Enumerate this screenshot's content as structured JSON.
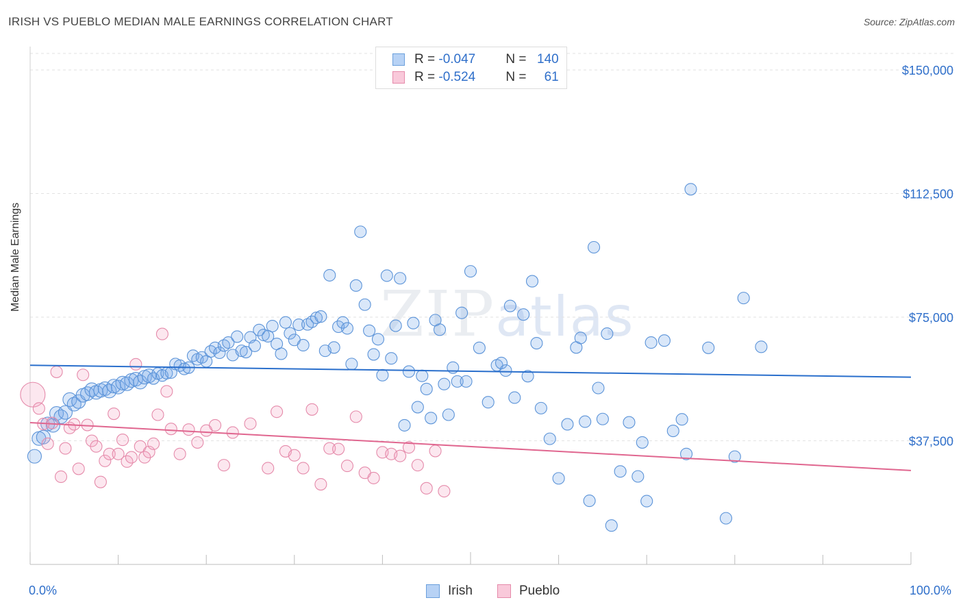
{
  "header": {
    "title": "IRISH VS PUEBLO MEDIAN MALE EARNINGS CORRELATION CHART",
    "source": "Source: ZipAtlas.com"
  },
  "watermark": {
    "zip": "ZIP",
    "atlas": "atlas"
  },
  "legend": {
    "rows": [
      {
        "r_label": "R = ",
        "r_value": "-0.047",
        "n_label": "N = ",
        "n_value": "140",
        "color": "#a9c8f0",
        "stroke": "#6a9fdc"
      },
      {
        "r_label": "R = ",
        "r_value": "-0.524",
        "n_label": "N = ",
        "n_value": "61",
        "color": "#f7bfd2",
        "stroke": "#e58aaa"
      }
    ]
  },
  "bottom_legend": {
    "irish": "Irish",
    "pueblo": "Pueblo"
  },
  "colors": {
    "irish_fill": "rgba(120,170,235,0.28)",
    "irish_stroke": "#5b93d8",
    "irish_line": "#2a6fcc",
    "pueblo_fill": "rgba(245,160,190,0.25)",
    "pueblo_stroke": "#e58aaa",
    "pueblo_line": "#e0668f",
    "axis_label": "#2f6fca"
  },
  "chart_data": {
    "type": "scatter",
    "title": "IRISH VS PUEBLO MEDIAN MALE EARNINGS CORRELATION CHART",
    "xlabel": "",
    "ylabel": "Median Male Earnings",
    "xlim": [
      0,
      100
    ],
    "ylim": [
      0,
      150000
    ],
    "x_tick_labels": [
      "0.0%",
      "100.0%"
    ],
    "y_ticks": [
      37500,
      75000,
      112500,
      150000
    ],
    "y_tick_labels": [
      "$37,500",
      "$75,000",
      "$112,500",
      "$150,000"
    ],
    "grid": true,
    "series": [
      {
        "name": "Irish",
        "trend": [
          [
            0,
            60400
          ],
          [
            100,
            56800
          ]
        ],
        "points": [
          [
            0.5,
            32800
          ],
          [
            1,
            38200
          ],
          [
            1.5,
            38600
          ],
          [
            2,
            42600
          ],
          [
            2.6,
            42200
          ],
          [
            3,
            45800
          ],
          [
            3.5,
            44800
          ],
          [
            4,
            46100
          ],
          [
            4.5,
            50000
          ],
          [
            5,
            48600
          ],
          [
            5.5,
            49400
          ],
          [
            6,
            51300
          ],
          [
            6.5,
            51800
          ],
          [
            7,
            53000
          ],
          [
            7.5,
            52200
          ],
          [
            8,
            52800
          ],
          [
            8.5,
            53300
          ],
          [
            9,
            52600
          ],
          [
            9.5,
            54100
          ],
          [
            10,
            53800
          ],
          [
            10.5,
            55000
          ],
          [
            11,
            54800
          ],
          [
            11.5,
            55800
          ],
          [
            12,
            56200
          ],
          [
            12.5,
            55300
          ],
          [
            13,
            56800
          ],
          [
            13.5,
            57200
          ],
          [
            14,
            56400
          ],
          [
            14.5,
            57900
          ],
          [
            15,
            57300
          ],
          [
            15.5,
            58000
          ],
          [
            16,
            58200
          ],
          [
            16.5,
            60800
          ],
          [
            17,
            60300
          ],
          [
            17.5,
            59300
          ],
          [
            18,
            59700
          ],
          [
            18.5,
            63300
          ],
          [
            19,
            62200
          ],
          [
            19.5,
            62800
          ],
          [
            20,
            61600
          ],
          [
            20.5,
            64600
          ],
          [
            21,
            65700
          ],
          [
            21.5,
            64200
          ],
          [
            22,
            66400
          ],
          [
            22.5,
            67300
          ],
          [
            23,
            63500
          ],
          [
            23.5,
            69100
          ],
          [
            24,
            64800
          ],
          [
            24.5,
            64400
          ],
          [
            25,
            68900
          ],
          [
            25.5,
            66300
          ],
          [
            26,
            71100
          ],
          [
            26.5,
            69600
          ],
          [
            27,
            69200
          ],
          [
            27.5,
            72300
          ],
          [
            28,
            66900
          ],
          [
            28.5,
            63900
          ],
          [
            29,
            73400
          ],
          [
            29.5,
            70100
          ],
          [
            30,
            68100
          ],
          [
            30.5,
            72700
          ],
          [
            31,
            66500
          ],
          [
            31.5,
            72800
          ],
          [
            32,
            73600
          ],
          [
            32.5,
            74800
          ],
          [
            33,
            75200
          ],
          [
            33.5,
            64800
          ],
          [
            34,
            87700
          ],
          [
            34.5,
            65800
          ],
          [
            35,
            72100
          ],
          [
            35.5,
            73400
          ],
          [
            36,
            71600
          ],
          [
            36.5,
            60800
          ],
          [
            37,
            84600
          ],
          [
            37.5,
            100900
          ],
          [
            38,
            78800
          ],
          [
            38.5,
            70900
          ],
          [
            39,
            63700
          ],
          [
            39.5,
            68300
          ],
          [
            40,
            57400
          ],
          [
            40.5,
            87600
          ],
          [
            41,
            62500
          ],
          [
            41.5,
            72400
          ],
          [
            42,
            86800
          ],
          [
            42.5,
            42200
          ],
          [
            43,
            58500
          ],
          [
            43.5,
            73200
          ],
          [
            44,
            47700
          ],
          [
            44.5,
            57200
          ],
          [
            45,
            53200
          ],
          [
            45.5,
            44400
          ],
          [
            46,
            74100
          ],
          [
            46.5,
            71200
          ],
          [
            47,
            54700
          ],
          [
            47.5,
            45400
          ],
          [
            48,
            59700
          ],
          [
            48.5,
            55500
          ],
          [
            49,
            76300
          ],
          [
            49.5,
            55500
          ],
          [
            50,
            88900
          ],
          [
            51,
            65700
          ],
          [
            52,
            49200
          ],
          [
            53,
            60400
          ],
          [
            53.5,
            61100
          ],
          [
            54,
            58800
          ],
          [
            54.5,
            78400
          ],
          [
            55,
            50600
          ],
          [
            56,
            75800
          ],
          [
            56.5,
            57100
          ],
          [
            57,
            85900
          ],
          [
            57.5,
            67100
          ],
          [
            58,
            47400
          ],
          [
            59,
            38100
          ],
          [
            60,
            26100
          ],
          [
            61,
            42500
          ],
          [
            62,
            65800
          ],
          [
            62.5,
            68700
          ],
          [
            63,
            43300
          ],
          [
            63.5,
            19300
          ],
          [
            64,
            96200
          ],
          [
            64.5,
            53500
          ],
          [
            65,
            44100
          ],
          [
            65.5,
            70000
          ],
          [
            66,
            11800
          ],
          [
            67,
            28200
          ],
          [
            68,
            43100
          ],
          [
            69,
            26700
          ],
          [
            69.5,
            37000
          ],
          [
            70,
            19200
          ],
          [
            70.5,
            67300
          ],
          [
            72,
            67900
          ],
          [
            73,
            40500
          ],
          [
            74,
            44000
          ],
          [
            74.5,
            33500
          ],
          [
            75,
            113800
          ],
          [
            77,
            65700
          ],
          [
            79,
            14000
          ],
          [
            80,
            32700
          ],
          [
            81,
            80800
          ],
          [
            83,
            66000
          ]
        ]
      },
      {
        "name": "Pueblo",
        "trend": [
          [
            0,
            43000
          ],
          [
            100,
            28500
          ]
        ],
        "points": [
          [
            0.3,
            51500
          ],
          [
            1,
            47300
          ],
          [
            1.5,
            42600
          ],
          [
            2,
            36600
          ],
          [
            2.5,
            42900
          ],
          [
            3,
            58400
          ],
          [
            3.5,
            26600
          ],
          [
            4,
            35200
          ],
          [
            4.5,
            41400
          ],
          [
            5,
            42500
          ],
          [
            5.5,
            29000
          ],
          [
            6,
            57500
          ],
          [
            6.5,
            42300
          ],
          [
            7,
            37500
          ],
          [
            7.5,
            35800
          ],
          [
            8,
            25000
          ],
          [
            8.5,
            31400
          ],
          [
            9,
            33500
          ],
          [
            9.5,
            45700
          ],
          [
            10,
            33500
          ],
          [
            10.5,
            37800
          ],
          [
            11,
            31200
          ],
          [
            11.5,
            32500
          ],
          [
            12,
            60700
          ],
          [
            12.5,
            35800
          ],
          [
            13,
            32500
          ],
          [
            13.5,
            34100
          ],
          [
            14,
            36600
          ],
          [
            14.5,
            45400
          ],
          [
            15,
            69900
          ],
          [
            15.5,
            52500
          ],
          [
            16,
            41100
          ],
          [
            17,
            33500
          ],
          [
            18,
            40900
          ],
          [
            19,
            37000
          ],
          [
            20,
            40600
          ],
          [
            21,
            42200
          ],
          [
            22,
            30100
          ],
          [
            23,
            40000
          ],
          [
            25,
            42700
          ],
          [
            27,
            29200
          ],
          [
            28,
            46300
          ],
          [
            29,
            34300
          ],
          [
            30,
            33100
          ],
          [
            31,
            29200
          ],
          [
            32,
            47000
          ],
          [
            33,
            24300
          ],
          [
            34,
            35200
          ],
          [
            35,
            35000
          ],
          [
            36,
            29900
          ],
          [
            37,
            44800
          ],
          [
            38,
            27800
          ],
          [
            39,
            26200
          ],
          [
            40,
            34000
          ],
          [
            41,
            33500
          ],
          [
            42,
            32900
          ],
          [
            43,
            35500
          ],
          [
            44,
            30100
          ],
          [
            45,
            23100
          ],
          [
            46,
            34400
          ],
          [
            47,
            22200
          ]
        ]
      }
    ]
  }
}
